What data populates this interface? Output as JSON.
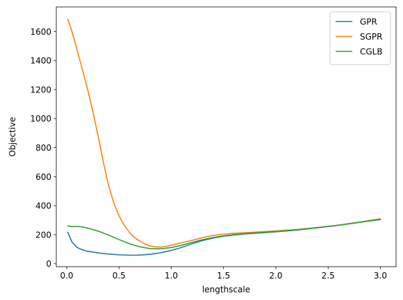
{
  "chart_data": {
    "type": "line",
    "title": "",
    "xlabel": "lengthscale",
    "ylabel": "Objective",
    "xlim": [
      -0.1,
      3.15
    ],
    "ylim": [
      -20,
      1770
    ],
    "xticks": [
      0.0,
      0.5,
      1.0,
      1.5,
      2.0,
      2.5,
      3.0
    ],
    "xtick_labels": [
      "0.0",
      "0.5",
      "1.0",
      "1.5",
      "2.0",
      "2.5",
      "3.0"
    ],
    "yticks": [
      0,
      200,
      400,
      600,
      800,
      1000,
      1200,
      1400,
      1600
    ],
    "ytick_labels": [
      "0",
      "200",
      "400",
      "600",
      "800",
      "1000",
      "1200",
      "1400",
      "1600"
    ],
    "grid": false,
    "legend_position": "top-right",
    "series": [
      {
        "name": "GPR",
        "color": "#1f77b4",
        "x": [
          0.01,
          0.05,
          0.1,
          0.15,
          0.2,
          0.3,
          0.4,
          0.5,
          0.6,
          0.7,
          0.8,
          0.9,
          1.0,
          1.1,
          1.2,
          1.3,
          1.4,
          1.5,
          1.6,
          1.7,
          1.8,
          1.9,
          2.0,
          2.2,
          2.4,
          2.6,
          2.8,
          3.0
        ],
        "y": [
          218,
          150,
          112,
          96,
          86,
          75,
          67,
          62,
          59,
          60,
          66,
          76,
          92,
          113,
          138,
          160,
          177,
          190,
          198,
          205,
          210,
          215,
          220,
          232,
          248,
          265,
          285,
          305
        ]
      },
      {
        "name": "SGPR",
        "color": "#ff7f0e",
        "x": [
          0.01,
          0.05,
          0.1,
          0.15,
          0.2,
          0.25,
          0.3,
          0.35,
          0.4,
          0.45,
          0.5,
          0.55,
          0.6,
          0.65,
          0.7,
          0.75,
          0.8,
          0.85,
          0.9,
          0.95,
          1.0,
          1.1,
          1.2,
          1.3,
          1.4,
          1.5,
          1.6,
          1.7,
          1.8,
          1.9,
          2.0,
          2.2,
          2.4,
          2.6,
          2.8,
          3.0
        ],
        "y": [
          1685,
          1600,
          1470,
          1340,
          1200,
          1050,
          880,
          700,
          540,
          420,
          330,
          265,
          215,
          180,
          155,
          136,
          122,
          116,
          115,
          120,
          128,
          145,
          162,
          180,
          195,
          205,
          210,
          214,
          218,
          222,
          226,
          236,
          250,
          266,
          287,
          310
        ]
      },
      {
        "name": "CGLB",
        "color": "#2ca02c",
        "x": [
          0.01,
          0.05,
          0.1,
          0.15,
          0.2,
          0.3,
          0.4,
          0.5,
          0.6,
          0.7,
          0.8,
          0.9,
          1.0,
          1.1,
          1.2,
          1.3,
          1.4,
          1.5,
          1.6,
          1.7,
          1.8,
          1.9,
          2.0,
          2.2,
          2.4,
          2.6,
          2.8,
          3.0
        ],
        "y": [
          262,
          256,
          257,
          254,
          246,
          225,
          198,
          167,
          138,
          117,
          104,
          103,
          112,
          128,
          148,
          166,
          181,
          193,
          201,
          207,
          212,
          217,
          222,
          234,
          249,
          266,
          286,
          307
        ]
      }
    ]
  }
}
